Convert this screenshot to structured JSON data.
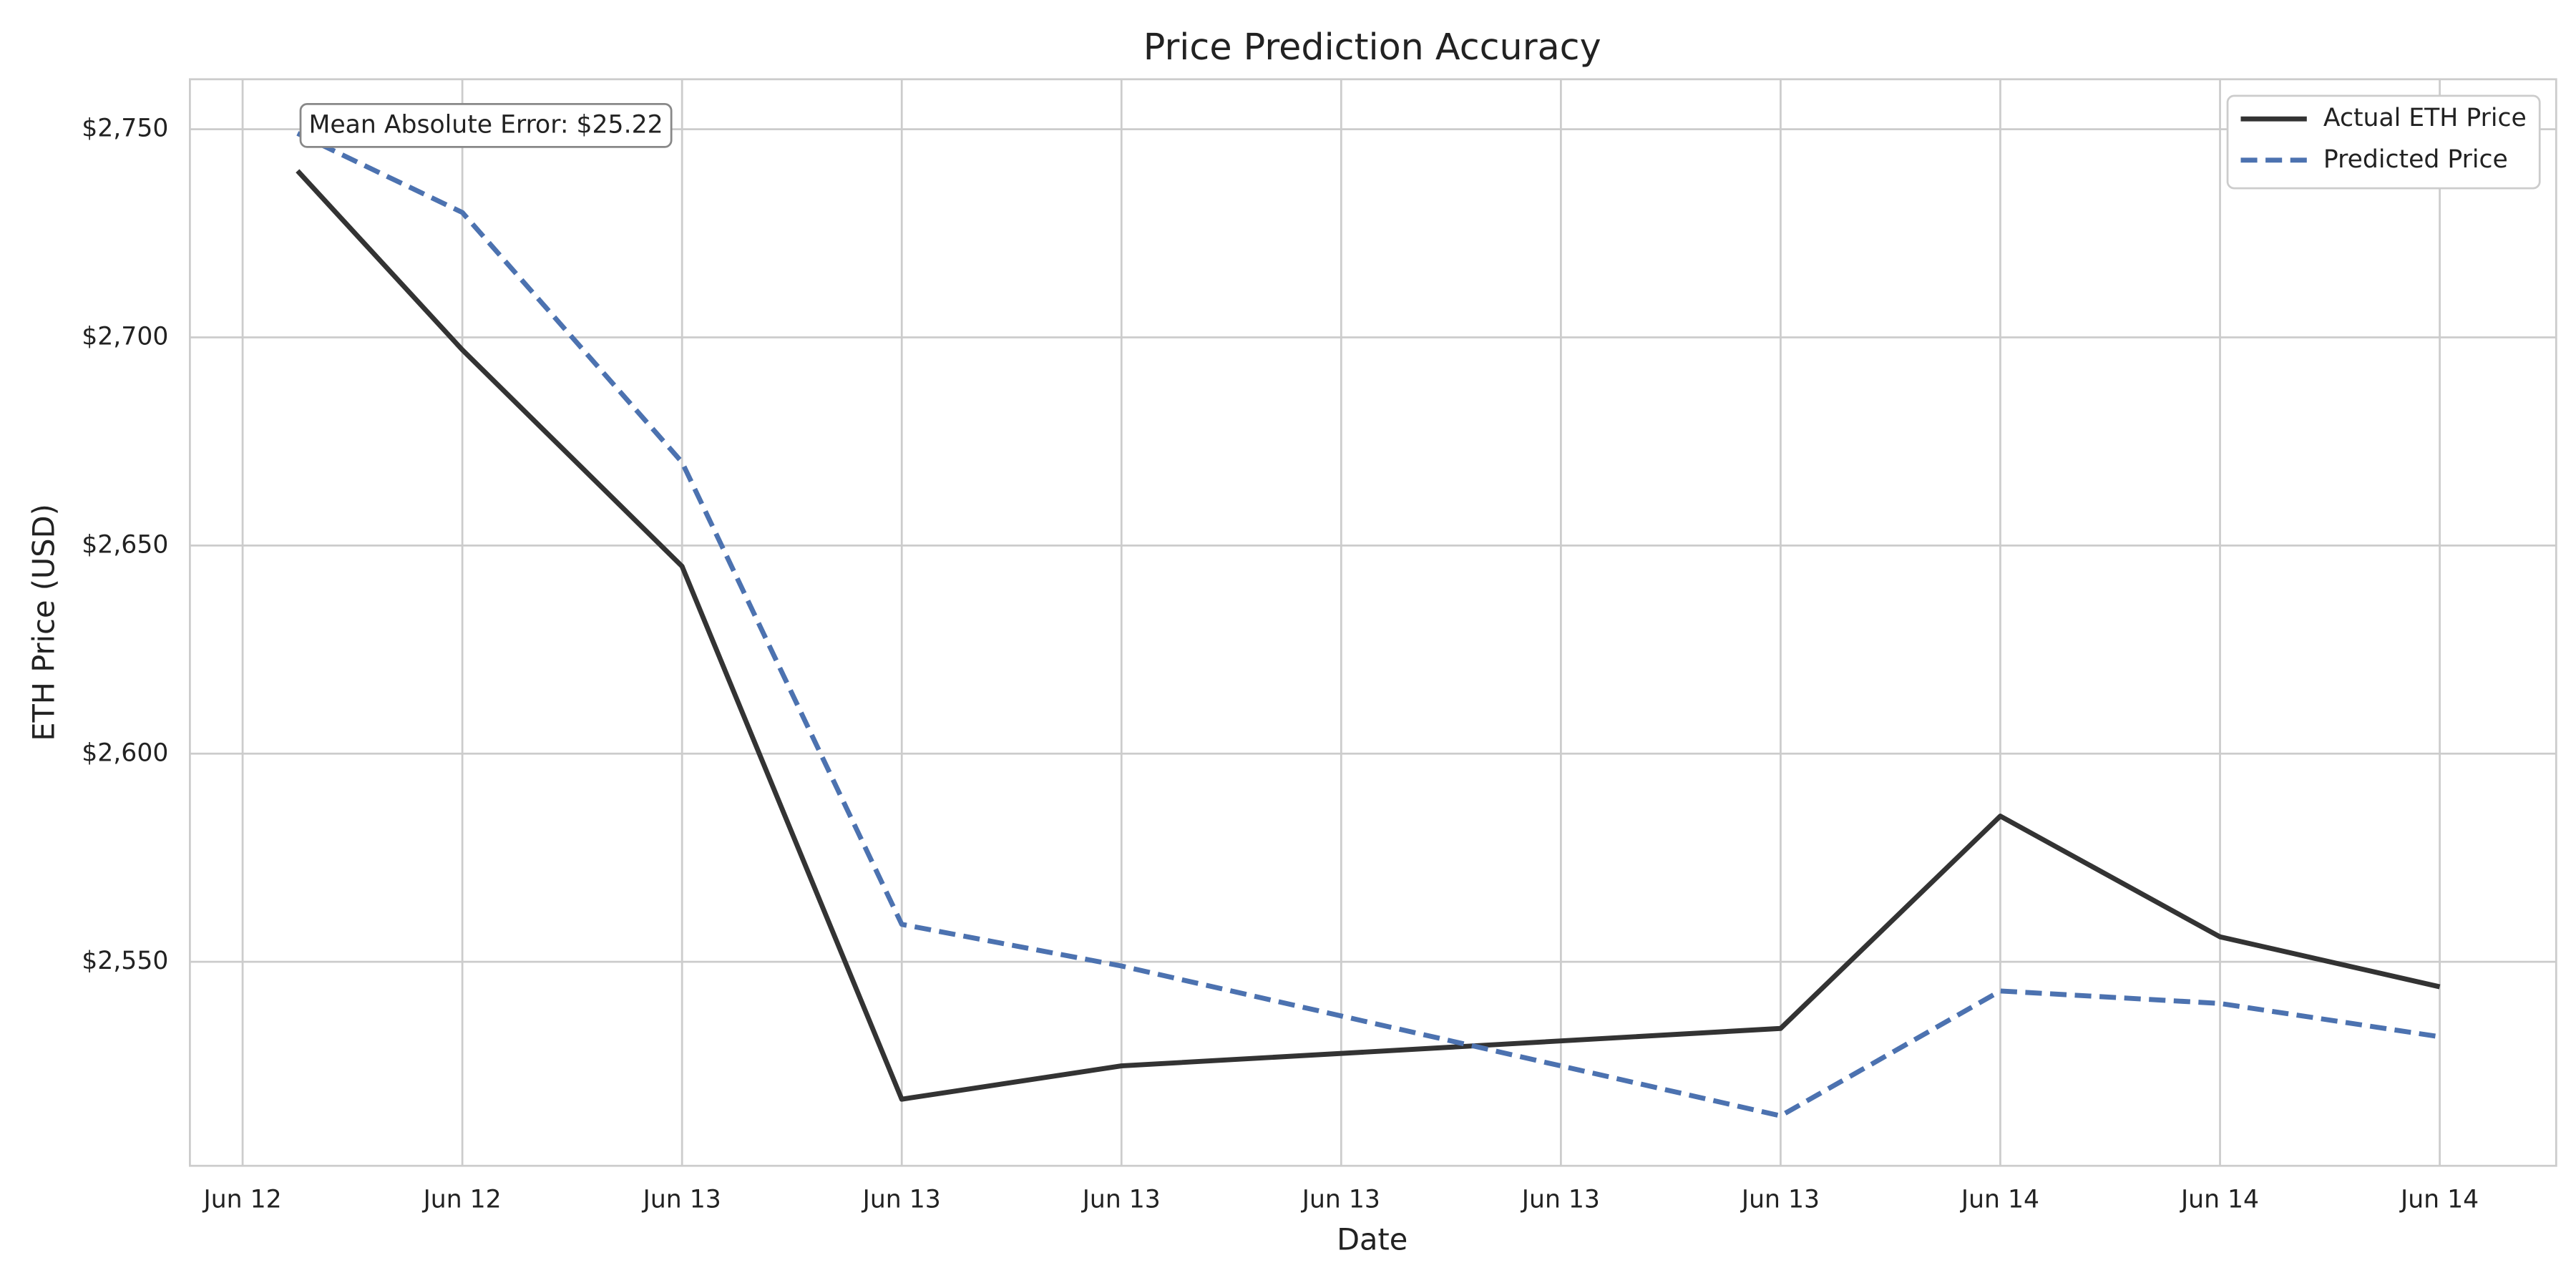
{
  "chart_data": {
    "type": "line",
    "title": "Price Prediction Accuracy",
    "x_label": "Date",
    "y_label": "ETH Price (USD)",
    "annotation": "Mean Absolute Error: $25.22",
    "x": [
      0.25,
      1,
      2,
      3,
      4,
      7,
      8,
      9,
      10
    ],
    "xlim": [
      -0.24,
      10.53
    ],
    "xticks": [
      {
        "value": 0,
        "label": "Jun 12"
      },
      {
        "value": 1,
        "label": "Jun 12"
      },
      {
        "value": 2,
        "label": "Jun 13"
      },
      {
        "value": 3,
        "label": "Jun 13"
      },
      {
        "value": 4,
        "label": "Jun 13"
      },
      {
        "value": 5,
        "label": "Jun 13"
      },
      {
        "value": 6,
        "label": "Jun 13"
      },
      {
        "value": 7,
        "label": "Jun 13"
      },
      {
        "value": 8,
        "label": "Jun 14"
      },
      {
        "value": 9,
        "label": "Jun 14"
      },
      {
        "value": 10,
        "label": "Jun 14"
      }
    ],
    "ylim": [
      2501,
      2762
    ],
    "yticks": [
      {
        "value": 2550,
        "label": "$2,550"
      },
      {
        "value": 2600,
        "label": "$2,600"
      },
      {
        "value": 2650,
        "label": "$2,650"
      },
      {
        "value": 2700,
        "label": "$2,700"
      },
      {
        "value": 2750,
        "label": "$2,750"
      }
    ],
    "grid": true,
    "legend": "upper right",
    "series": [
      {
        "name": "Actual ETH Price",
        "color": "#333333",
        "dash": "solid",
        "values": [
          2740,
          2697,
          2645,
          2517,
          2525,
          2534,
          2585,
          2556,
          2544
        ]
      },
      {
        "name": "Predicted Price",
        "color": "#4c72b0",
        "dash": "dashed",
        "values": [
          2749,
          2730,
          2670,
          2559,
          2549,
          2513,
          2543,
          2540,
          2532
        ]
      }
    ]
  }
}
